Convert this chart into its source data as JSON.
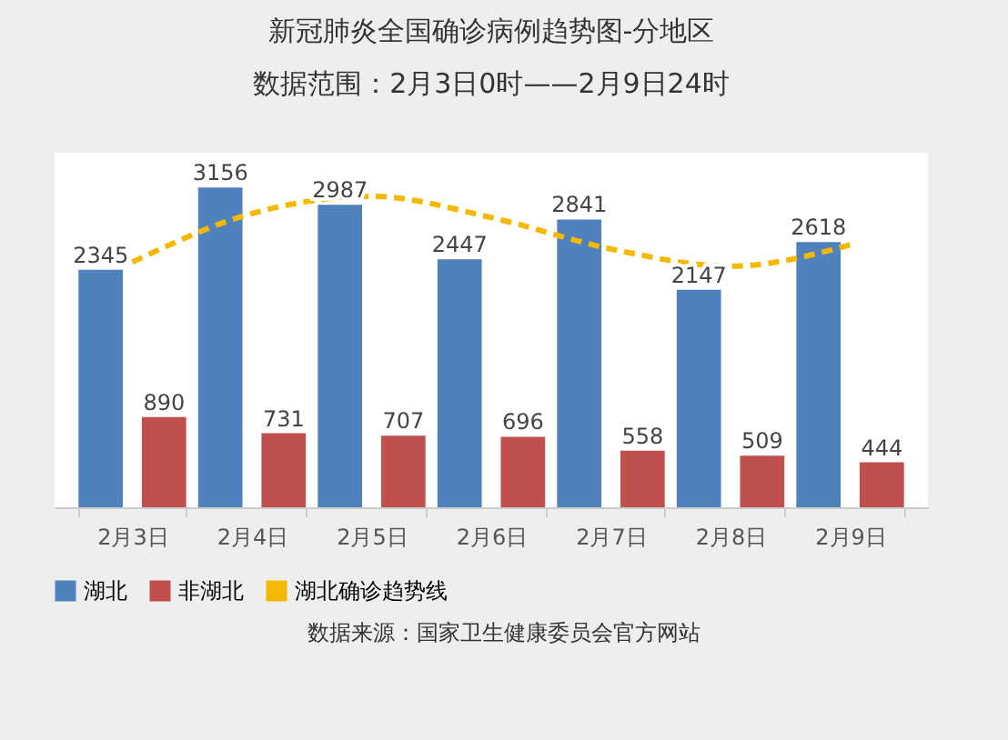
{
  "chart_data": {
    "type": "bar",
    "title": "新冠肺炎全国确诊病例趋势图-分地区",
    "subtitle": "数据范围：2月3日0时——2月9日24时",
    "categories": [
      "2月3日",
      "2月4日",
      "2月5日",
      "2月6日",
      "2月7日",
      "2月8日",
      "2月9日"
    ],
    "series": [
      {
        "name": "湖北",
        "color": "#4f81bd",
        "values": [
          2345,
          3156,
          2987,
          2447,
          2841,
          2147,
          2618
        ],
        "value_labels": [
          "2345",
          "3156",
          "2987",
          "2447",
          "2841",
          "2147",
          "2618"
        ]
      },
      {
        "name": "非湖北",
        "color": "#c0504d",
        "values": [
          890,
          731,
          707,
          696,
          558,
          509,
          444
        ],
        "value_labels": [
          "890",
          "731",
          "707",
          "696",
          "558",
          "509",
          "444"
        ]
      },
      {
        "name": "湖北确诊趋势线",
        "type": "line",
        "color": "#f5b800",
        "line_style": "dashed",
        "values": [
          2420,
          2900,
          3070,
          2860,
          2550,
          2380,
          2590
        ]
      }
    ],
    "legend": "bottom",
    "grid": false,
    "annotations": [
      "数据来源：国家卫生健康委员会官方网站"
    ]
  }
}
